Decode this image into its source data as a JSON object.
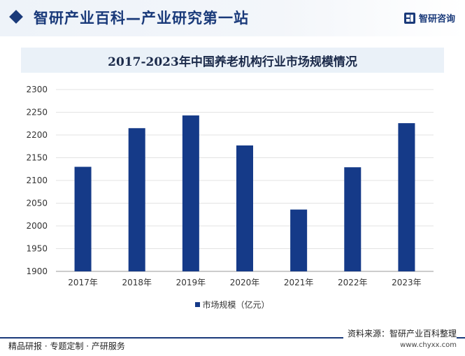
{
  "header": {
    "title": "智研产业百科—产业研究第一站",
    "brand_label": "智研咨询",
    "brand_icon": "zhiyan-logo-icon"
  },
  "chart_data": {
    "type": "bar",
    "title": "2017-2023年中国养老机构行业市场规模情况",
    "categories": [
      "2017年",
      "2018年",
      "2019年",
      "2020年",
      "2021年",
      "2022年",
      "2023年"
    ],
    "series": [
      {
        "name": "市场规模（亿元）",
        "values": [
          2130,
          2215,
          2243,
          2177,
          2036,
          2129,
          2226
        ]
      }
    ],
    "y_ticks": [
      "1900",
      "1950",
      "2000",
      "2050",
      "2100",
      "2150",
      "2200",
      "2250",
      "2300"
    ],
    "ylim": [
      1900,
      2300
    ],
    "grid": true,
    "legend": "bottom-center",
    "bar_color": "#153a88"
  },
  "footer": {
    "tagline": "精品研报 · 专题定制 · 产研服务",
    "source": "资料来源：智研产业百科整理",
    "url": "www.chyxx.com"
  }
}
